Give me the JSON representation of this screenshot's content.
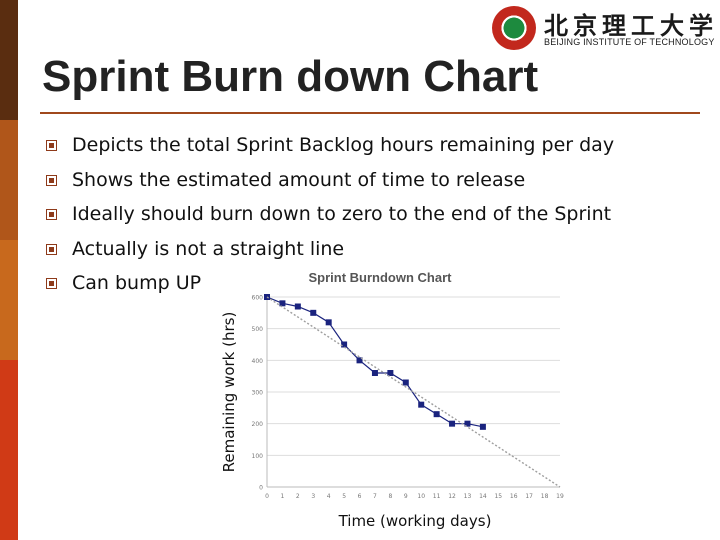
{
  "slide": {
    "title": "Sprint Burn down Chart",
    "bullets": [
      "Depicts the total Sprint Backlog hours remaining per day",
      "Shows the estimated amount of time to release",
      "Ideally should burn down to zero to the end of the Sprint",
      "Actually is not a straight line",
      "Can bump UP"
    ]
  },
  "logo": {
    "name_cn": "北京理工大学",
    "name_en": "BEIJING INSTITUTE OF TECHNOLOGY",
    "seal_text": "北京理工大学 1940"
  },
  "colors": {
    "side_bar": [
      "#5a2d10",
      "#b0561a",
      "#c8691d",
      "#d03a16"
    ],
    "title_rule": "#a0481c",
    "bullet_icon": "#8e3a1a",
    "actual_line": "#1a237e",
    "ideal_line": "#9e9e9e"
  },
  "chart_data": {
    "type": "line",
    "title": "Sprint Burndown Chart",
    "xlabel": "Time (working days)",
    "ylabel": "Remaining work (hrs)",
    "x_ticks": [
      0,
      1,
      2,
      3,
      4,
      5,
      6,
      7,
      8,
      9,
      10,
      11,
      12,
      13,
      14,
      15,
      16,
      17,
      18,
      19
    ],
    "y_ticks": [
      0,
      100,
      200,
      300,
      400,
      500,
      600
    ],
    "xlim": [
      0,
      19
    ],
    "ylim": [
      0,
      600
    ],
    "grid": true,
    "series": [
      {
        "role": "actual",
        "marker": "square",
        "x": [
          0,
          1,
          2,
          3,
          4,
          5,
          6,
          7,
          8,
          9,
          10,
          11,
          12,
          13,
          14
        ],
        "y": [
          600,
          580,
          570,
          550,
          520,
          450,
          400,
          360,
          360,
          330,
          260,
          230,
          200,
          200,
          190
        ]
      },
      {
        "role": "ideal",
        "style": "dotted",
        "x": [
          0,
          19
        ],
        "y": [
          600,
          0
        ]
      }
    ]
  }
}
